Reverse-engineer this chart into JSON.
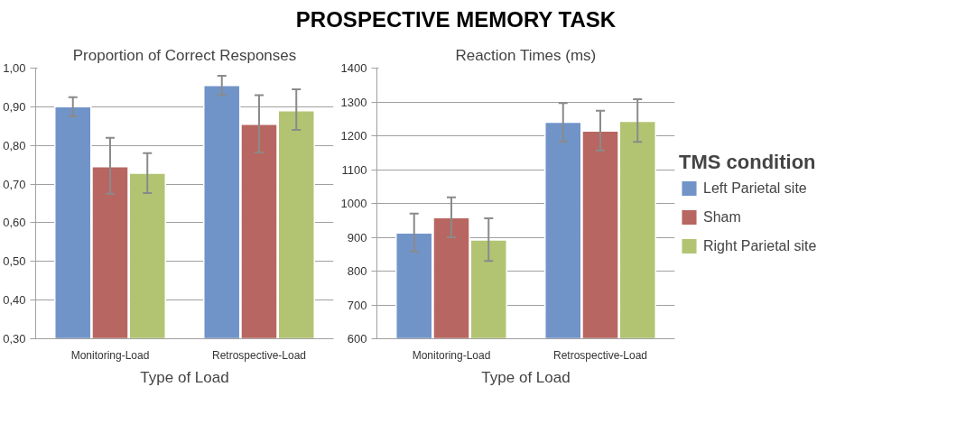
{
  "chart_data": [
    {
      "type": "bar",
      "title": "Proportion of Correct Responses",
      "xlabel": "Type of Load",
      "annotations": [
        "PROSPECTIVE MEMORY TASK"
      ],
      "categories": [
        "Monitoring-Load",
        "Retrospective-Load"
      ],
      "series": [
        {
          "color": "#7194c8",
          "values": [
            0.9,
            0.955
          ],
          "errors": [
            [
              0.875,
              0.925
            ],
            [
              0.93,
              0.98
            ]
          ]
        },
        {
          "color": "#b86661",
          "values": [
            0.745,
            0.855
          ],
          "errors": [
            [
              0.675,
              0.82
            ],
            [
              0.782,
              0.93
            ]
          ]
        },
        {
          "color": "#b2c472",
          "values": [
            0.728,
            0.89
          ],
          "errors": [
            [
              0.677,
              0.78
            ],
            [
              0.84,
              0.945
            ]
          ]
        }
      ],
      "ylim": [
        0.3,
        1.0
      ],
      "yticks": [
        {
          "value": 0.3,
          "label": "0,30"
        },
        {
          "value": 0.4,
          "label": "0,40"
        },
        {
          "value": 0.5,
          "label": "0,50"
        },
        {
          "value": 0.6,
          "label": "0,60"
        },
        {
          "value": 0.7,
          "label": "0,70"
        },
        {
          "value": 0.8,
          "label": "0,80"
        },
        {
          "value": 0.9,
          "label": "0,90"
        },
        {
          "value": 1.0,
          "label": "1,00"
        }
      ],
      "grid": "y",
      "legend": false
    },
    {
      "type": "bar",
      "title": "Reaction Times (ms)",
      "xlabel": "Type of Load",
      "legend_title": "TMS condition",
      "categories": [
        "Monitoring-Load",
        "Retrospective-Load"
      ],
      "series": [
        {
          "name": "Left Parietal site",
          "color": "#7194c8",
          "values": [
            913,
            1240
          ],
          "errors": [
            [
              858,
              970
            ],
            [
              1183,
              1297
            ]
          ]
        },
        {
          "name": "Sham",
          "color": "#b86661",
          "values": [
            958,
            1214
          ],
          "errors": [
            [
              900,
              1018
            ],
            [
              1157,
              1274
            ]
          ]
        },
        {
          "name": "Right Parietal site",
          "color": "#b2c472",
          "values": [
            892,
            1243
          ],
          "errors": [
            [
              830,
              956
            ],
            [
              1182,
              1308
            ]
          ]
        }
      ],
      "ylim": [
        600,
        1400
      ],
      "yticks": [
        600,
        700,
        800,
        900,
        1000,
        1100,
        1200,
        1300,
        1400
      ],
      "grid": "y",
      "legend": "right"
    }
  ]
}
